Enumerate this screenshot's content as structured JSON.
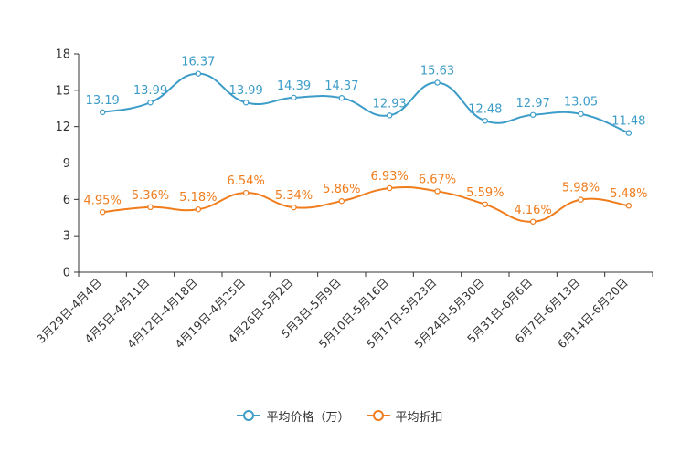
{
  "chart_data": {
    "type": "line",
    "categories": [
      "3月29日-4月4日",
      "4月5日-4月11日",
      "4月12日-4月18日",
      "4月19日-4月25日",
      "4月26日-5月2日",
      "5月3日-5月9日",
      "5月10日-5月16日",
      "5月17日-5月23日",
      "5月24日-5月30日",
      "5月31日-6月6日",
      "6月7日-6月13日",
      "6月14日-6月20日"
    ],
    "ylim": [
      0,
      18
    ],
    "yticks": [
      0,
      3,
      6,
      9,
      12,
      15,
      18
    ],
    "series": [
      {
        "name": "平均价格（万）",
        "color": "#3c9cc8",
        "values": [
          13.19,
          13.99,
          16.37,
          13.99,
          14.39,
          14.37,
          12.93,
          15.63,
          12.48,
          12.97,
          13.05,
          11.48
        ],
        "labels": [
          "13.19",
          "13.99",
          "16.37",
          "13.99",
          "14.39",
          "14.37",
          "12.93",
          "15.63",
          "12.48",
          "12.97",
          "13.05",
          "11.48"
        ]
      },
      {
        "name": "平均折扣",
        "color": "#f07c1c",
        "values": [
          4.95,
          5.36,
          5.18,
          6.54,
          5.34,
          5.86,
          6.93,
          6.67,
          5.59,
          4.16,
          5.98,
          5.48
        ],
        "labels": [
          "4.95%",
          "5.36%",
          "5.18%",
          "6.54%",
          "5.34%",
          "5.86%",
          "6.93%",
          "6.67%",
          "5.59%",
          "4.16%",
          "5.98%",
          "5.48%"
        ]
      }
    ],
    "legend_position": "bottom-center",
    "grid": false
  }
}
